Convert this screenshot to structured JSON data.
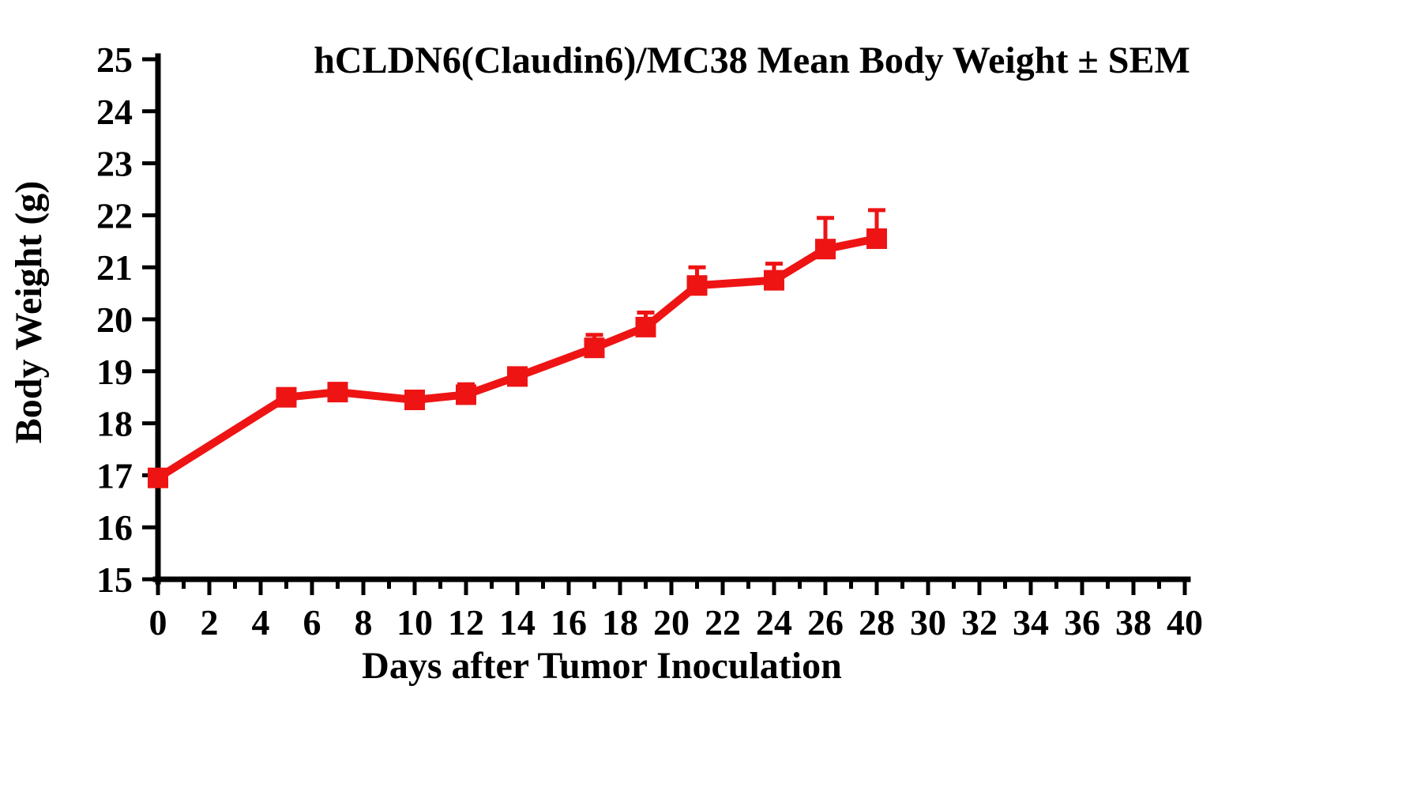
{
  "chart_data": {
    "type": "line",
    "title": "hCLDN6(Claudin6)/MC38 Mean Body Weight ± SEM",
    "xlabel": "Days after Tumor Inoculation",
    "ylabel": "Body Weight (g)",
    "xlim": [
      0,
      40
    ],
    "ylim": [
      15,
      25
    ],
    "x_tick_step": 2,
    "x_minor_step": 1,
    "y_tick_step": 1,
    "grid": false,
    "legend": false,
    "error_direction": "up",
    "series": [
      {
        "name": "hCLDN6(Claudin6)/MC38",
        "color": "#ee1414",
        "marker": "square",
        "x": [
          0,
          5,
          7,
          10,
          12,
          14,
          17,
          19,
          21,
          24,
          26,
          28
        ],
        "y": [
          16.95,
          18.5,
          18.6,
          18.45,
          18.55,
          18.9,
          19.45,
          19.85,
          20.65,
          20.75,
          21.35,
          21.55
        ],
        "sem_upper": [
          0.15,
          0.1,
          0.1,
          0.12,
          0.2,
          0.12,
          0.25,
          0.28,
          0.35,
          0.32,
          0.6,
          0.55
        ]
      }
    ]
  }
}
